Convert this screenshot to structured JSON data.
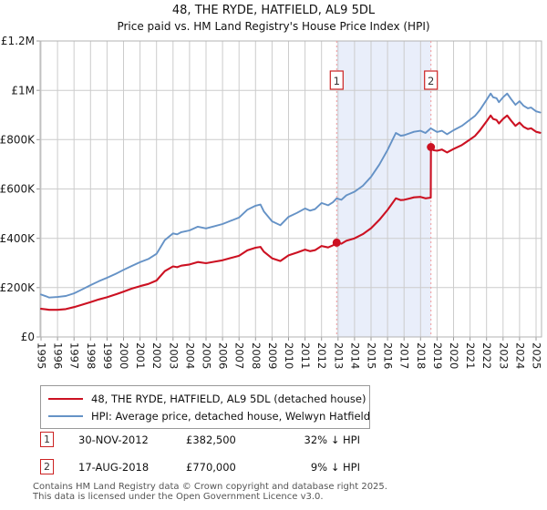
{
  "title": "48, THE RYDE, HATFIELD, AL9 5DL",
  "subtitle": "Price paid vs. HM Land Registry's House Price Index (HPI)",
  "chart_data": {
    "type": "line",
    "unit": "GBP thousands",
    "x_range": [
      1995,
      2025.4
    ],
    "ylim_gbp": [
      0,
      1200000
    ],
    "grid": true,
    "x_axis": {
      "ticks": [
        "1995",
        "1996",
        "1997",
        "1998",
        "1999",
        "2000",
        "2001",
        "2002",
        "2003",
        "2004",
        "2005",
        "2006",
        "2007",
        "2008",
        "2009",
        "2010",
        "2011",
        "2012",
        "2013",
        "2014",
        "2015",
        "2016",
        "2017",
        "2018",
        "2019",
        "2020",
        "2021",
        "2022",
        "2023",
        "2024",
        "2025"
      ]
    },
    "y_axis": {
      "ticks": [
        {
          "v": 0,
          "label": "£0"
        },
        {
          "v": 200,
          "label": "£200K"
        },
        {
          "v": 400,
          "label": "£400K"
        },
        {
          "v": 600,
          "label": "£600K"
        },
        {
          "v": 800,
          "label": "£800K"
        },
        {
          "v": 1000,
          "label": "£1M"
        },
        {
          "v": 1200,
          "label": "£1.2M"
        }
      ]
    },
    "band": {
      "from": 2012.917,
      "to": 2018.63,
      "color": "#e9eefa",
      "edge_color": "#f19a9a"
    },
    "sales": [
      {
        "marker": "1",
        "x": 2012.917,
        "value": 382500
      },
      {
        "marker": "2",
        "x": 2018.63,
        "value": 770000
      }
    ],
    "series": [
      {
        "name": "48, THE RYDE, HATFIELD, AL9 5DL (detached house)",
        "color": "#cc1122",
        "width": 2.1,
        "points": [
          [
            1995,
            114
          ],
          [
            1995.3,
            112
          ],
          [
            1995.5,
            110
          ],
          [
            1996,
            110
          ],
          [
            1996.5,
            113
          ],
          [
            1997,
            121
          ],
          [
            1997.5,
            131
          ],
          [
            1998,
            141
          ],
          [
            1998.5,
            152
          ],
          [
            1999,
            161
          ],
          [
            1999.5,
            172
          ],
          [
            2000,
            184
          ],
          [
            2000.5,
            196
          ],
          [
            2001,
            206
          ],
          [
            2001.5,
            215
          ],
          [
            2002,
            229
          ],
          [
            2002.5,
            267
          ],
          [
            2003,
            286
          ],
          [
            2003.25,
            283
          ],
          [
            2003.5,
            289
          ],
          [
            2004,
            294
          ],
          [
            2004.5,
            304
          ],
          [
            2005,
            299
          ],
          [
            2005.5,
            305
          ],
          [
            2006,
            311
          ],
          [
            2006.5,
            320
          ],
          [
            2007,
            329
          ],
          [
            2007.5,
            351
          ],
          [
            2008,
            362
          ],
          [
            2008.3,
            365
          ],
          [
            2008.5,
            346
          ],
          [
            2009,
            319
          ],
          [
            2009.5,
            308
          ],
          [
            2010,
            331
          ],
          [
            2010.5,
            342
          ],
          [
            2011,
            354
          ],
          [
            2011.3,
            348
          ],
          [
            2011.6,
            352
          ],
          [
            2012,
            369
          ],
          [
            2012.4,
            363
          ],
          [
            2012.7,
            372
          ],
          [
            2012.917,
            382.5
          ],
          [
            2013.2,
            378
          ],
          [
            2013.5,
            390
          ],
          [
            2014,
            400
          ],
          [
            2014.5,
            417
          ],
          [
            2015,
            441
          ],
          [
            2015.5,
            475
          ],
          [
            2016,
            515
          ],
          [
            2016.5,
            562
          ],
          [
            2016.8,
            555
          ],
          [
            2017,
            556
          ],
          [
            2017.3,
            561
          ],
          [
            2017.6,
            566
          ],
          [
            2018,
            568
          ],
          [
            2018.3,
            562
          ],
          [
            2018.62,
            565
          ],
          [
            2018.63,
            770
          ],
          [
            2018.8,
            757
          ],
          [
            2019,
            755
          ],
          [
            2019.3,
            760
          ],
          [
            2019.6,
            748
          ],
          [
            2020,
            762
          ],
          [
            2020.5,
            778
          ],
          [
            2021,
            801
          ],
          [
            2021.3,
            815
          ],
          [
            2021.6,
            838
          ],
          [
            2022,
            874
          ],
          [
            2022.25,
            898
          ],
          [
            2022.4,
            884
          ],
          [
            2022.6,
            880
          ],
          [
            2022.75,
            866
          ],
          [
            2023,
            884
          ],
          [
            2023.25,
            898
          ],
          [
            2023.5,
            876
          ],
          [
            2023.75,
            856
          ],
          [
            2024,
            869
          ],
          [
            2024.25,
            852
          ],
          [
            2024.5,
            843
          ],
          [
            2024.7,
            846
          ],
          [
            2025,
            832
          ],
          [
            2025.25,
            828
          ]
        ]
      },
      {
        "name": "HPI: Average price, detached house, Welwyn Hatfield",
        "color": "#6592c6",
        "width": 1.9,
        "points": [
          [
            1995,
            172
          ],
          [
            1995.3,
            165
          ],
          [
            1995.5,
            160
          ],
          [
            1996,
            162
          ],
          [
            1996.5,
            166
          ],
          [
            1997,
            177
          ],
          [
            1997.5,
            193
          ],
          [
            1998,
            210
          ],
          [
            1998.5,
            226
          ],
          [
            1999,
            240
          ],
          [
            1999.5,
            255
          ],
          [
            2000,
            272
          ],
          [
            2000.5,
            288
          ],
          [
            2001,
            303
          ],
          [
            2001.5,
            316
          ],
          [
            2002,
            337
          ],
          [
            2002.5,
            393
          ],
          [
            2003,
            420
          ],
          [
            2003.25,
            416
          ],
          [
            2003.5,
            425
          ],
          [
            2004,
            432
          ],
          [
            2004.5,
            447
          ],
          [
            2005,
            440
          ],
          [
            2005.5,
            449
          ],
          [
            2006,
            458
          ],
          [
            2006.5,
            471
          ],
          [
            2007,
            484
          ],
          [
            2007.5,
            516
          ],
          [
            2008,
            532
          ],
          [
            2008.3,
            537
          ],
          [
            2008.5,
            509
          ],
          [
            2009,
            469
          ],
          [
            2009.5,
            453
          ],
          [
            2010,
            487
          ],
          [
            2010.5,
            503
          ],
          [
            2011,
            521
          ],
          [
            2011.3,
            512
          ],
          [
            2011.6,
            518
          ],
          [
            2012,
            543
          ],
          [
            2012.4,
            534
          ],
          [
            2012.7,
            547
          ],
          [
            2012.917,
            562
          ],
          [
            2013.2,
            556
          ],
          [
            2013.5,
            574
          ],
          [
            2014,
            589
          ],
          [
            2014.5,
            613
          ],
          [
            2015,
            649
          ],
          [
            2015.5,
            699
          ],
          [
            2016,
            758
          ],
          [
            2016.5,
            827
          ],
          [
            2016.8,
            816
          ],
          [
            2017,
            818
          ],
          [
            2017.3,
            825
          ],
          [
            2017.6,
            832
          ],
          [
            2018,
            836
          ],
          [
            2018.3,
            827
          ],
          [
            2018.62,
            846
          ],
          [
            2019,
            831
          ],
          [
            2019.3,
            836
          ],
          [
            2019.6,
            822
          ],
          [
            2020,
            838
          ],
          [
            2020.5,
            856
          ],
          [
            2021,
            881
          ],
          [
            2021.3,
            896
          ],
          [
            2021.6,
            921
          ],
          [
            2022,
            961
          ],
          [
            2022.25,
            987
          ],
          [
            2022.4,
            972
          ],
          [
            2022.6,
            968
          ],
          [
            2022.75,
            952
          ],
          [
            2023,
            972
          ],
          [
            2023.25,
            987
          ],
          [
            2023.5,
            963
          ],
          [
            2023.75,
            941
          ],
          [
            2024,
            956
          ],
          [
            2024.25,
            937
          ],
          [
            2024.5,
            927
          ],
          [
            2024.7,
            930
          ],
          [
            2025,
            915
          ],
          [
            2025.25,
            910
          ]
        ]
      }
    ]
  },
  "annotations": [
    {
      "marker": "1",
      "date": "30-NOV-2012",
      "price": "£382,500",
      "hpi": "32% ↓ HPI"
    },
    {
      "marker": "2",
      "date": "17-AUG-2018",
      "price": "£770,000",
      "hpi": "9% ↓ HPI"
    }
  ],
  "footer": {
    "line1": "Contains HM Land Registry data © Crown copyright and database right 2025.",
    "line2": "This data is licensed under the Open Government Licence v3.0."
  }
}
